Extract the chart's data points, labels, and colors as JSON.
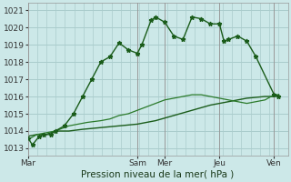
{
  "title": "",
  "xlabel": "Pression niveau de la mer( hPa )",
  "ylabel": "",
  "bg_color": "#cce8e8",
  "grid_color": "#aacccc",
  "line_color_dark": "#1a5c1a",
  "line_color_mid": "#2a7a2a",
  "ytick_labels": [
    "1013",
    "1014",
    "1015",
    "1016",
    "1017",
    "1018",
    "1019",
    "1020",
    "1021"
  ],
  "ytick_vals": [
    1013,
    1014,
    1015,
    1016,
    1017,
    1018,
    1019,
    1020,
    1021
  ],
  "ymin": 1012.6,
  "ymax": 1021.4,
  "xtick_labels": [
    "Mar",
    "Sam",
    "Mer",
    "Jeu",
    "Ven"
  ],
  "xtick_positions": [
    0,
    48,
    60,
    84,
    108
  ],
  "xmin": 0,
  "xmax": 114,
  "series1_x": [
    0,
    2,
    5,
    7,
    10,
    12,
    16,
    20,
    24,
    28,
    32,
    36,
    40,
    44,
    48,
    50,
    54,
    56,
    60,
    64,
    68,
    72,
    76,
    80,
    84,
    86,
    88,
    92,
    96,
    100,
    108,
    110
  ],
  "series1_y": [
    1013.6,
    1013.2,
    1013.7,
    1013.8,
    1013.8,
    1014.0,
    1014.3,
    1015.0,
    1016.0,
    1017.0,
    1018.0,
    1018.3,
    1019.1,
    1018.7,
    1018.5,
    1019.0,
    1020.4,
    1020.6,
    1020.3,
    1019.5,
    1019.3,
    1020.6,
    1020.5,
    1020.2,
    1020.2,
    1019.2,
    1019.3,
    1019.5,
    1019.2,
    1018.3,
    1016.1,
    1016.0
  ],
  "series2_x": [
    0,
    4,
    8,
    12,
    18,
    24,
    32,
    40,
    48,
    56,
    64,
    72,
    80,
    88,
    96,
    104,
    108,
    110
  ],
  "series2_y": [
    1013.7,
    1013.8,
    1013.8,
    1014.0,
    1014.0,
    1014.1,
    1014.2,
    1014.3,
    1014.4,
    1014.6,
    1014.9,
    1015.2,
    1015.5,
    1015.7,
    1015.9,
    1016.0,
    1016.0,
    1016.1
  ],
  "series3_x": [
    0,
    4,
    8,
    12,
    18,
    22,
    26,
    32,
    36,
    40,
    44,
    48,
    52,
    56,
    60,
    64,
    68,
    72,
    76,
    80,
    84,
    88,
    92,
    96,
    100,
    104,
    108,
    110
  ],
  "series3_y": [
    1013.5,
    1013.8,
    1013.9,
    1014.0,
    1014.3,
    1014.4,
    1014.5,
    1014.6,
    1014.7,
    1014.9,
    1015.0,
    1015.2,
    1015.4,
    1015.6,
    1015.8,
    1015.9,
    1016.0,
    1016.1,
    1016.1,
    1016.0,
    1015.9,
    1015.8,
    1015.7,
    1015.6,
    1015.7,
    1015.8,
    1016.1,
    1016.1
  ],
  "xlabel_fontsize": 7.5,
  "tick_fontsize": 6.5
}
